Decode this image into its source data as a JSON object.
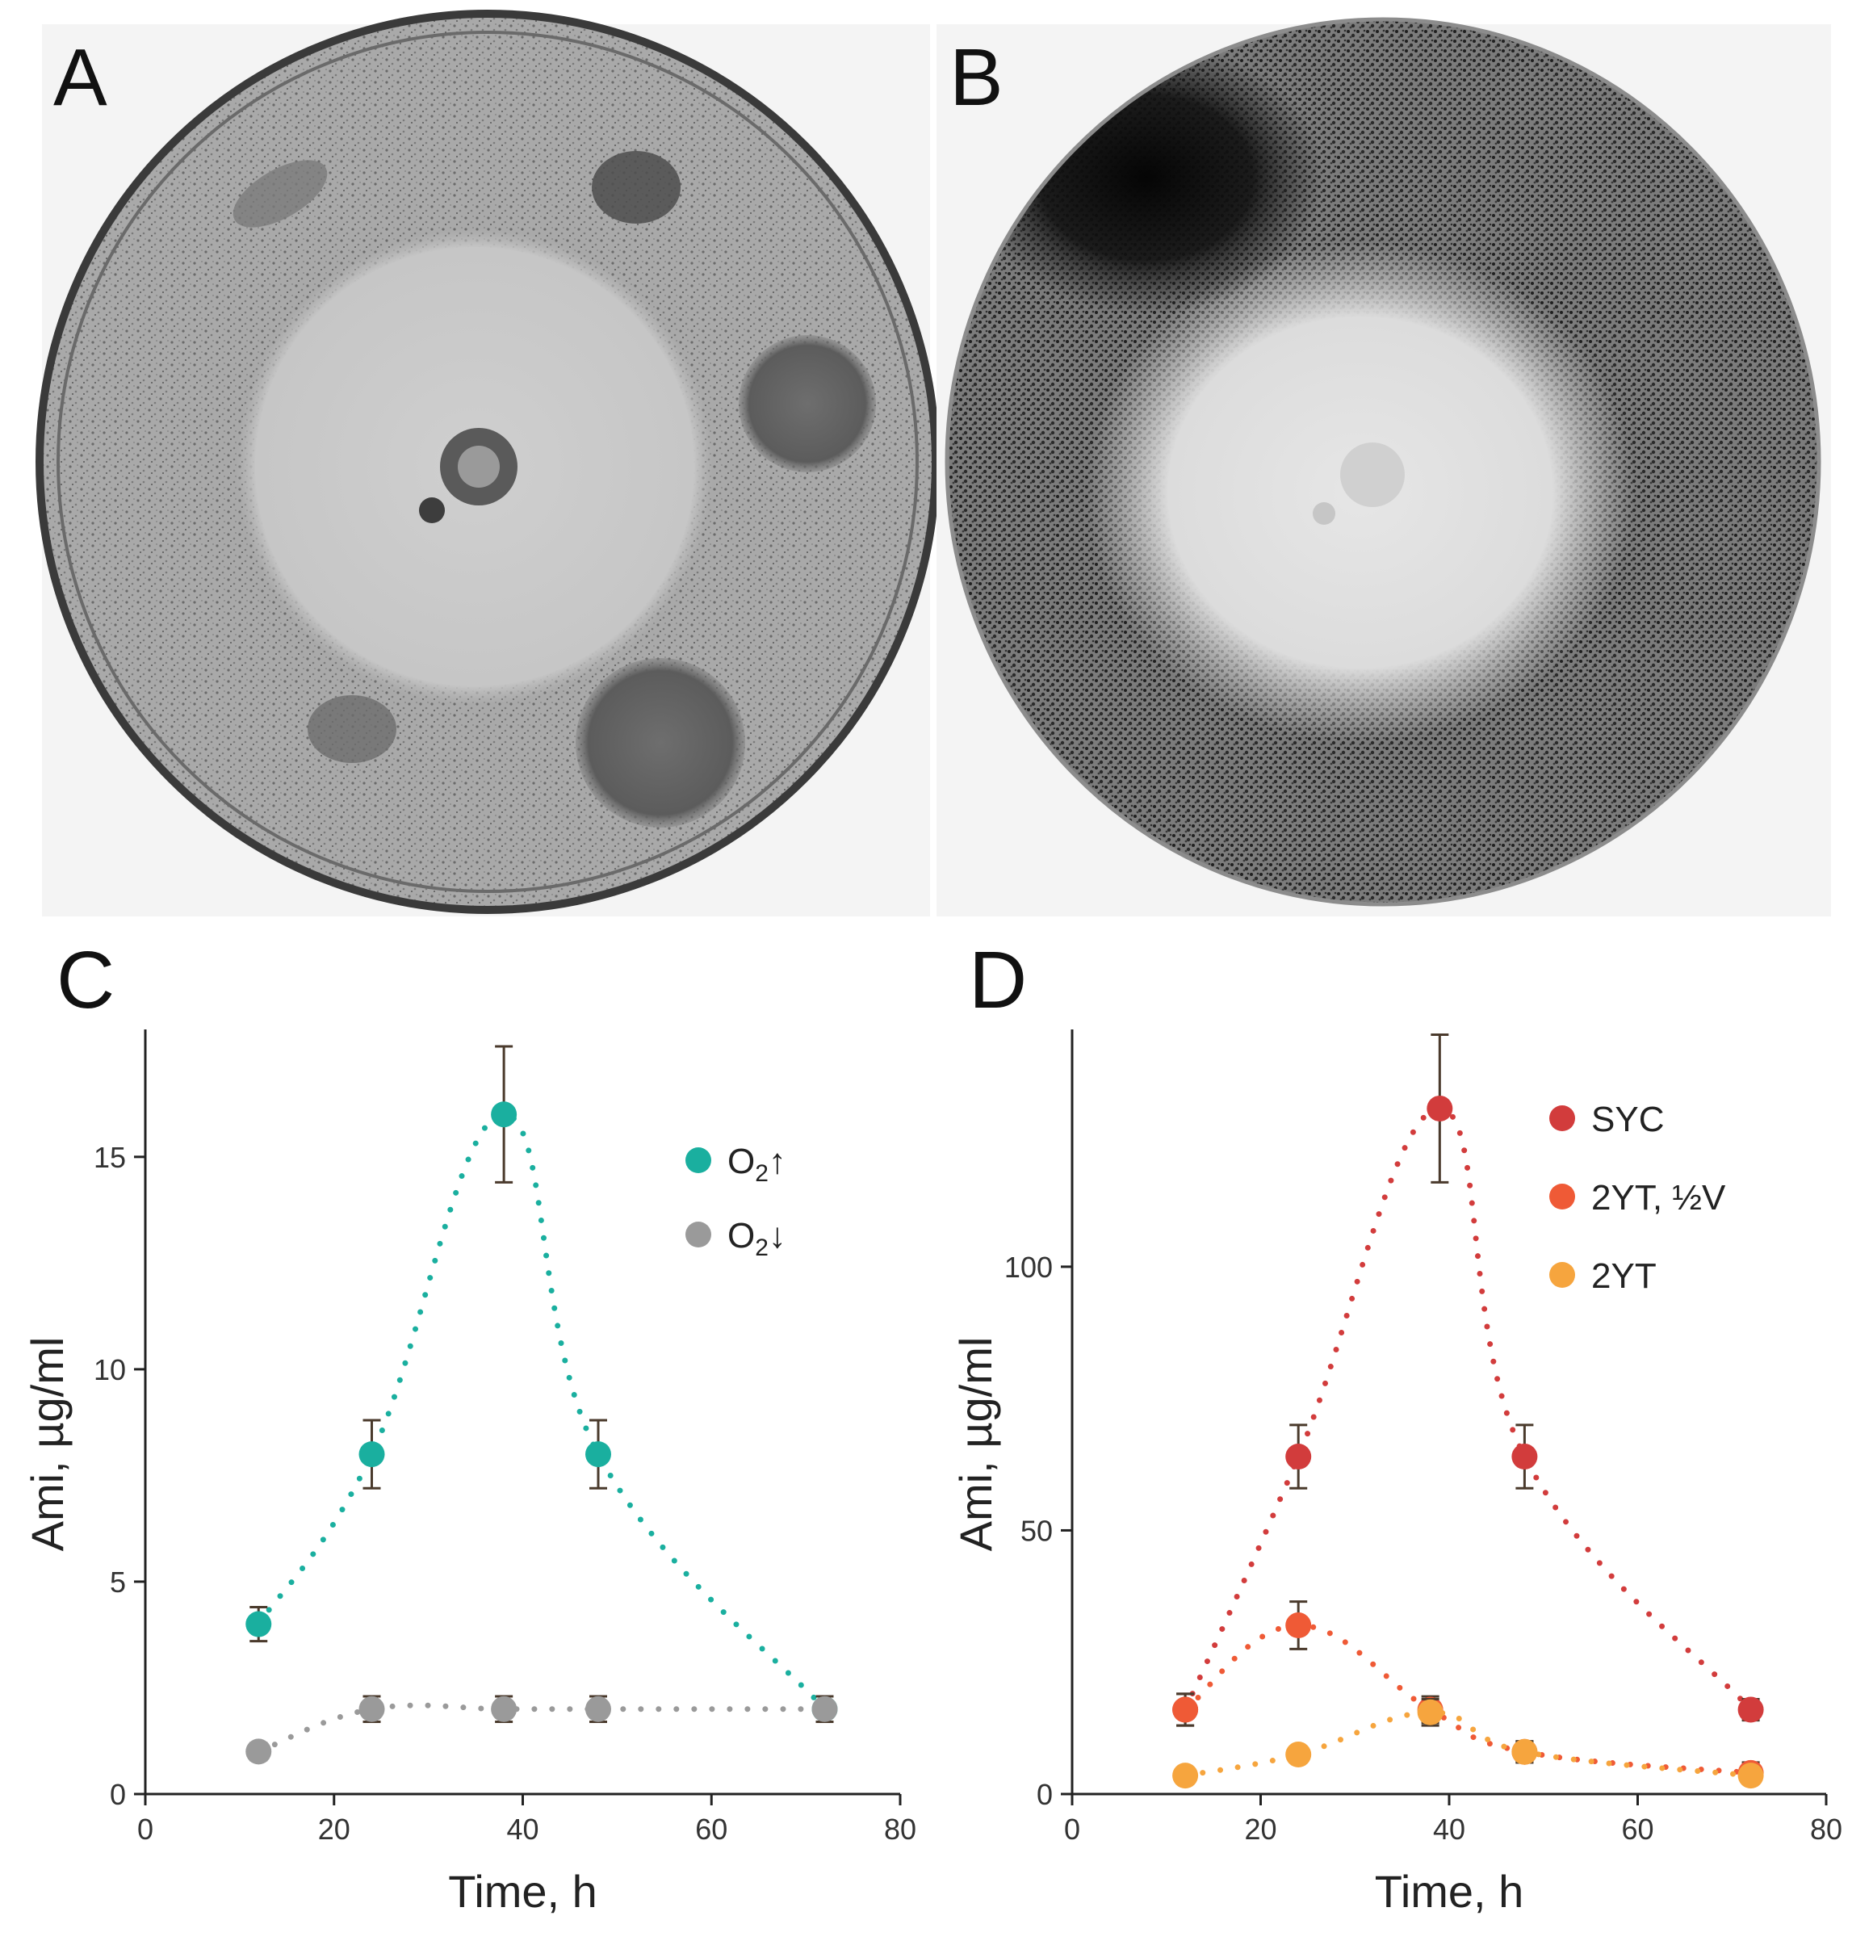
{
  "panels": {
    "A": {
      "letter": "A"
    },
    "B": {
      "letter": "B"
    },
    "C": {
      "letter": "C"
    },
    "D": {
      "letter": "D"
    }
  },
  "colors": {
    "teal": "#1aaf9f",
    "gray": "#9a9a9a",
    "syc": "#d23c3c",
    "twoyt_half_v": "#ef5a36",
    "twoyt": "#f6a53e",
    "errorbar": "#4a3a2c",
    "axis": "#222222"
  },
  "chart_data": [
    {
      "id": "C",
      "type": "scatter",
      "xlabel": "Time, h",
      "ylabel": "Ami, µg/ml",
      "xlim": [
        0,
        80
      ],
      "ylim": [
        0,
        18
      ],
      "xticks": [
        0,
        20,
        40,
        60,
        80
      ],
      "yticks": [
        0,
        5,
        10,
        15
      ],
      "legend_position": "top-right",
      "series": [
        {
          "name": "O",
          "name_sub": "2",
          "name_arrow": "↑",
          "color_key": "teal",
          "x": [
            12,
            24,
            38,
            48,
            72
          ],
          "y": [
            4,
            8,
            16,
            8,
            2
          ],
          "err": [
            0.4,
            0.8,
            1.6,
            0.8,
            0.3
          ]
        },
        {
          "name": "O",
          "name_sub": "2",
          "name_arrow": "↓",
          "color_key": "gray",
          "x": [
            12,
            24,
            38,
            48,
            72
          ],
          "y": [
            1,
            2,
            2,
            2,
            2
          ],
          "err": [
            0.2,
            0.3,
            0.3,
            0.3,
            0.3
          ]
        }
      ]
    },
    {
      "id": "D",
      "type": "scatter",
      "xlabel": "Time, h",
      "ylabel": "Ami, µg/ml",
      "xlim": [
        0,
        80
      ],
      "ylim": [
        0,
        145
      ],
      "xticks": [
        0,
        20,
        40,
        60,
        80
      ],
      "yticks": [
        0,
        50,
        100
      ],
      "legend_position": "top-right",
      "series": [
        {
          "name": "SYC",
          "color_key": "syc",
          "x": [
            12,
            24,
            39,
            48,
            72
          ],
          "y": [
            16,
            64,
            130,
            64,
            16
          ],
          "err": [
            3,
            6,
            14,
            6,
            2
          ]
        },
        {
          "name": "2YT, ½V",
          "color_key": "twoyt_half_v",
          "x": [
            12,
            24,
            38,
            48,
            72
          ],
          "y": [
            16,
            32,
            16,
            8,
            4
          ],
          "err": [
            3,
            4.5,
            2.5,
            2,
            2
          ]
        },
        {
          "name": "2YT",
          "color_key": "twoyt",
          "x": [
            12,
            24,
            38,
            48,
            72
          ],
          "y": [
            3.5,
            7.5,
            15.5,
            8,
            3.5
          ],
          "err": [
            1.5,
            1.5,
            2.5,
            2,
            1.5
          ]
        }
      ]
    }
  ]
}
